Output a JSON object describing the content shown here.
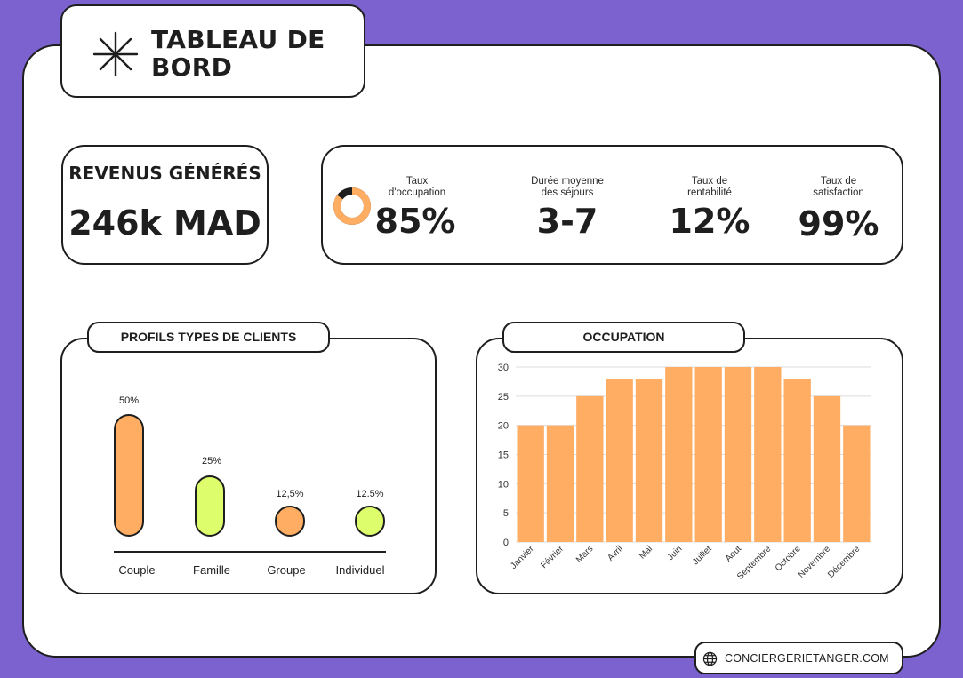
{
  "header": {
    "title": "TABLEAU DE BORD",
    "icon": "asterisk-icon"
  },
  "revenue": {
    "label": "REVENUS GÉNÉRÉS",
    "value": "246k MAD"
  },
  "kpis": [
    {
      "label": "Taux\nd'occupation",
      "value": "85%",
      "fraction": 0.85
    },
    {
      "label": "Durée moyenne\ndes séjours",
      "value": "3-7"
    },
    {
      "label": "Taux de\nrentabilité",
      "value": "12%"
    },
    {
      "label": "Taux de\nsatisfaction",
      "value": "99%"
    }
  ],
  "profiles": {
    "title": "PROFILS TYPES DE CLIENTS",
    "items": [
      {
        "label": "Couple",
        "pct": "50%",
        "value": 50,
        "color": "#fead62"
      },
      {
        "label": "Famille",
        "pct": "25%",
        "value": 25,
        "color": "#ddfd6c"
      },
      {
        "label": "Groupe",
        "pct": "12,5%",
        "value": 12.5,
        "color": "#fead62"
      },
      {
        "label": "Individuel",
        "pct": "12.5%",
        "value": 12.5,
        "color": "#ddfd6c"
      }
    ]
  },
  "occupation": {
    "title": "OCCUPATION"
  },
  "chart_data": {
    "type": "bar",
    "categories": [
      "Janvier",
      "Février",
      "Mars",
      "Avril",
      "Mai",
      "Juin",
      "Juillet",
      "Aout",
      "Septembre",
      "Octobre",
      "Novembre",
      "Décembre"
    ],
    "values": [
      20,
      20,
      25,
      28,
      28,
      30,
      30,
      30,
      30,
      28,
      25,
      20
    ],
    "ylim": [
      0,
      30
    ],
    "yticks": [
      0,
      5,
      10,
      15,
      20,
      25,
      30
    ],
    "grid": true,
    "color": "#fead62"
  },
  "footer": {
    "url": "CONCIERGERIETANGER.COM",
    "icon": "globe-icon"
  },
  "colors": {
    "background": "#7b62cf",
    "orange": "#fead62",
    "lime": "#ddfd6c",
    "ink": "#1e1e1e"
  }
}
